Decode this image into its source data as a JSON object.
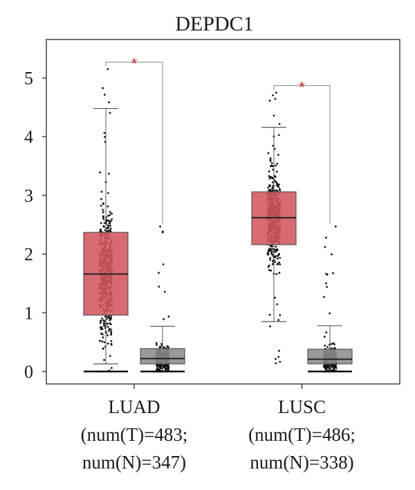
{
  "chart_data": {
    "type": "box",
    "title": "DEPDC1",
    "ylim": [
      0,
      5.4
    ],
    "yticks": [
      0,
      1,
      2,
      3,
      4,
      5
    ],
    "grid": false,
    "colors": {
      "tumor": "#d3575e",
      "normal": "#8c8c8c",
      "star": "#c62828",
      "points": "#111111",
      "bracket": "#9a9a9a"
    },
    "groups": [
      {
        "name": "LUAD",
        "label_lines": [
          "LUAD",
          "(num(T)=483;",
          "num(N)=347)"
        ],
        "significance": "*",
        "tumor": {
          "n": 483,
          "min": 0.0,
          "whisker_low": 0.13,
          "q1": 0.96,
          "median": 1.66,
          "q3": 2.37,
          "whisker_high": 4.48,
          "max": 5.15
        },
        "normal": {
          "n": 347,
          "min": 0.0,
          "whisker_low": 0.0,
          "q1": 0.13,
          "median": 0.22,
          "q3": 0.39,
          "whisker_high": 0.77,
          "max": 2.47
        }
      },
      {
        "name": "LUSC",
        "label_lines": [
          "LUSC",
          "(num(T)=486;",
          "num(N)=338)"
        ],
        "significance": "*",
        "tumor": {
          "n": 486,
          "min": 0.14,
          "whisker_low": 0.85,
          "q1": 2.16,
          "median": 2.62,
          "q3": 3.06,
          "whisker_high": 4.16,
          "max": 4.75
        },
        "normal": {
          "n": 338,
          "min": 0.0,
          "whisker_low": 0.0,
          "q1": 0.13,
          "median": 0.21,
          "q3": 0.38,
          "whisker_high": 0.78,
          "max": 2.47
        }
      }
    ]
  }
}
